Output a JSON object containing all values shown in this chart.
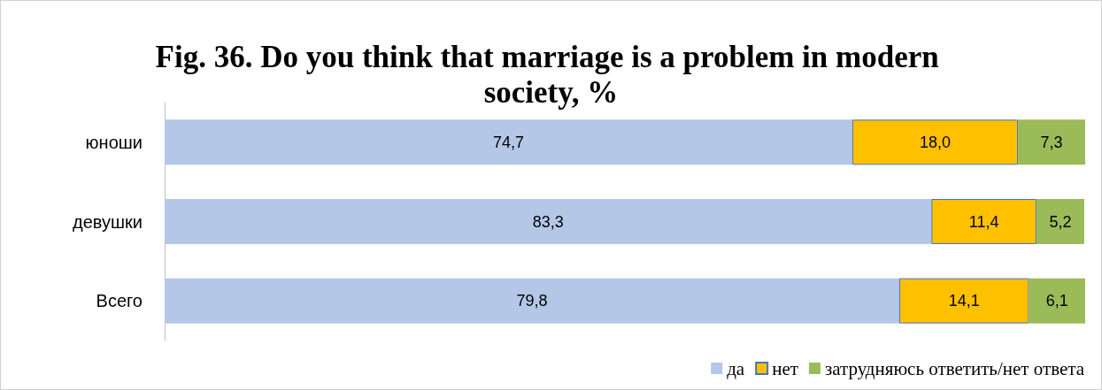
{
  "chart_data": {
    "type": "bar",
    "title": "Fig. 36. Do you think that marriage is a problem in modern society, %",
    "orientation": "horizontal",
    "stacked": true,
    "legend": "bottom right",
    "categories": [
      "юноши",
      "девушки",
      "Всего"
    ],
    "series": [
      {
        "name": "да",
        "color": "#b4c7e7",
        "values": [
          74.7,
          83.3,
          79.8
        ],
        "value_labels": [
          "74,7",
          "83,3",
          "79,8"
        ]
      },
      {
        "name": "нет",
        "color": "#ffc000",
        "values": [
          18.0,
          11.4,
          14.1
        ],
        "value_labels": [
          "18,0",
          "11,4",
          "14,1"
        ]
      },
      {
        "name": "затрудняюсь ответить/нет ответа",
        "color": "#9bbb59",
        "values": [
          7.3,
          5.2,
          6.1
        ],
        "value_labels": [
          "7,3",
          "5,2",
          "6,1"
        ]
      }
    ]
  }
}
